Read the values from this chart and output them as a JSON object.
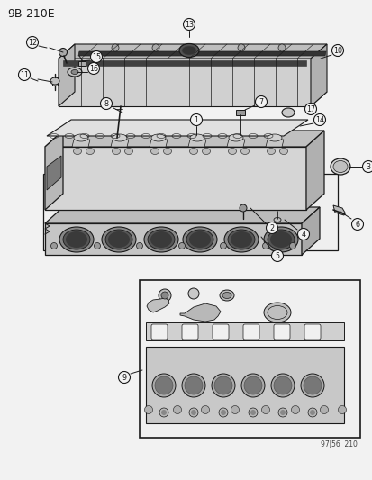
{
  "title": "9B-210E",
  "bg_color": "#f2f2f2",
  "line_color": "#1a1a1a",
  "label_color": "#1a1a1a",
  "watermark": "97J56  210",
  "fig_width": 4.14,
  "fig_height": 5.33,
  "dpi": 100
}
